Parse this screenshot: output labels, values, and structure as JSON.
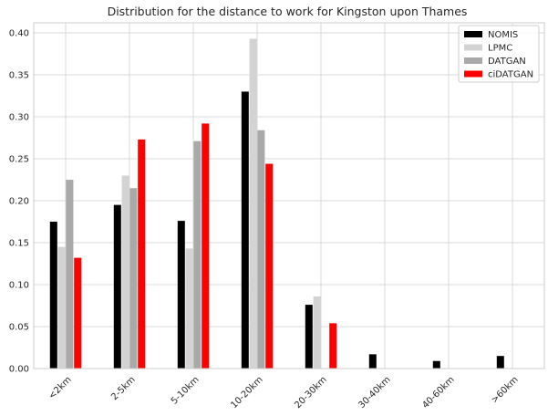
{
  "chart_data": {
    "type": "bar",
    "title": "Distribution for the distance to work for Kingston upon Thames",
    "xlabel": "",
    "ylabel": "",
    "categories": [
      "<2km",
      "2-5km",
      "5-10km",
      "10-20km",
      "20-30km",
      "30-40km",
      "40-60km",
      ">60km"
    ],
    "series": [
      {
        "name": "NOMIS",
        "color": "#000000",
        "values": [
          0.175,
          0.195,
          0.176,
          0.33,
          0.076,
          0.017,
          0.009,
          0.015
        ]
      },
      {
        "name": "LPMC",
        "color": "#d3d3d3",
        "values": [
          0.145,
          0.23,
          0.143,
          0.393,
          0.086,
          0.0,
          0.0,
          0.0
        ]
      },
      {
        "name": "DATGAN",
        "color": "#a9a9a9",
        "values": [
          0.225,
          0.215,
          0.271,
          0.284,
          0.0,
          0.0,
          0.0,
          0.0
        ]
      },
      {
        "name": "ciDATGAN",
        "color": "#ff0000",
        "values": [
          0.132,
          0.273,
          0.292,
          0.244,
          0.054,
          0.0,
          0.0,
          0.0
        ]
      }
    ],
    "ylim": [
      0,
      0.412
    ],
    "yticks": [
      "0.00",
      "0.05",
      "0.10",
      "0.15",
      "0.20",
      "0.25",
      "0.30",
      "0.35",
      "0.40"
    ],
    "grid": true,
    "legend_position": "top-right"
  }
}
